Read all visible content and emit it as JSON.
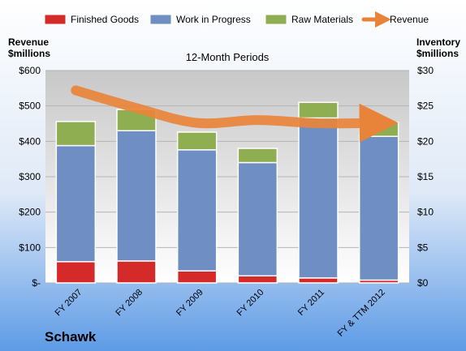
{
  "chart_data": {
    "type": "bar",
    "stacked": true,
    "title": "12-Month Periods",
    "company": "Schawk",
    "left_axis_label": [
      "Revenue",
      "$millions"
    ],
    "right_axis_label": [
      "Inventory",
      "$millions"
    ],
    "categories": [
      "FY 2007",
      "FY 2008",
      "FY 2009",
      "FY 2010",
      "FY 2011",
      "FY & TTM 2012"
    ],
    "left_axis": {
      "min": 0,
      "max": 600,
      "ticks": [
        "$-",
        "$100",
        "$200",
        "$300",
        "$400",
        "$500",
        "$600"
      ]
    },
    "right_axis": {
      "min": 0,
      "max": 30,
      "ticks": [
        "$0",
        "$5",
        "$10",
        "$15",
        "$20",
        "$25",
        "$30"
      ]
    },
    "series": [
      {
        "name": "Finished Goods",
        "axis": "right",
        "color": "#d42a2a",
        "values": [
          3.0,
          3.1,
          1.7,
          1.0,
          0.7,
          0.4
        ]
      },
      {
        "name": "Work in Progress",
        "axis": "right",
        "color": "#6f8fc4",
        "values": [
          16.4,
          18.4,
          17.1,
          16.0,
          22.6,
          20.3
        ]
      },
      {
        "name": "Raw Materials",
        "axis": "right",
        "color": "#8fae52",
        "values": [
          3.4,
          3.0,
          2.5,
          2.0,
          2.2,
          2.0
        ]
      },
      {
        "name": "Revenue",
        "axis": "left",
        "type": "line",
        "color": "#e8843a",
        "values": [
          544,
          494,
          452,
          460,
          451,
          452
        ]
      }
    ],
    "legend_position": "top",
    "grid": true
  }
}
